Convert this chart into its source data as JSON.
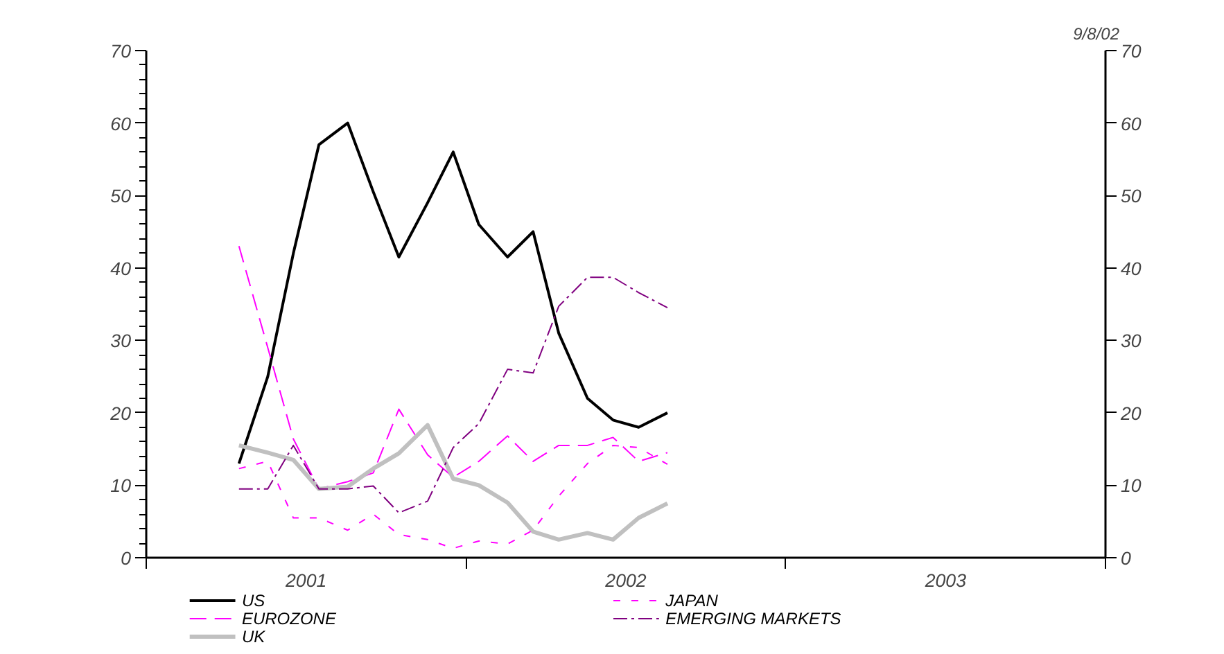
{
  "chart_data": {
    "type": "line",
    "x": [
      2001.29,
      2001.38,
      2001.46,
      2001.54,
      2001.63,
      2001.71,
      2001.79,
      2001.88,
      2001.96,
      2002.04,
      2002.13,
      2002.21,
      2002.29,
      2002.38,
      2002.46,
      2002.54,
      2002.63
    ],
    "series": [
      {
        "name": "US",
        "color": "#000000",
        "line_style": "solid",
        "values": [
          13,
          25,
          42,
          57,
          60,
          50.5,
          41.5,
          49,
          56,
          46,
          41.5,
          45,
          31,
          22,
          19,
          18,
          20
        ]
      },
      {
        "name": "EUROZONE",
        "color": "#ff00ff",
        "line_style": "dashed",
        "values": [
          43,
          29,
          16.4,
          9.5,
          10.5,
          11.7,
          20.5,
          14.2,
          11.1,
          13.3,
          16.8,
          13.3,
          15.5,
          15.5,
          16.6,
          13.3,
          14.5
        ]
      },
      {
        "name": "UK",
        "color": "#c0c0c0",
        "line_style": "solid",
        "values": [
          15.5,
          14.5,
          13.5,
          9.5,
          9.8,
          12.3,
          14.4,
          18.3,
          10.9,
          10,
          7.6,
          3.6,
          2.5,
          3.4,
          2.5,
          5.5,
          7.5
        ]
      },
      {
        "name": "JAPAN",
        "color": "#ff00ff",
        "line_style": "dotted",
        "values": [
          12.3,
          13.3,
          5.5,
          5.5,
          3.8,
          6,
          3.2,
          2.5,
          1.3,
          2.3,
          1.9,
          3.8,
          8.5,
          13,
          15.5,
          15.2,
          12.9
        ]
      },
      {
        "name": "EMERGING MARKETS",
        "color": "#800080",
        "line_style": "dashdot",
        "values": [
          9.5,
          9.5,
          15.5,
          9.5,
          9.5,
          9.9,
          6.2,
          7.8,
          15.2,
          18.5,
          26,
          25.5,
          34.7,
          38.7,
          38.7,
          36.6,
          34.5
        ]
      }
    ],
    "xlim": [
      2001,
      2004
    ],
    "xticks": [
      {
        "value": 2001,
        "label": null
      },
      {
        "value": 2001.5,
        "label": "2001"
      },
      {
        "value": 2002,
        "label": null
      },
      {
        "value": 2002.5,
        "label": "2002"
      },
      {
        "value": 2003,
        "label": null
      },
      {
        "value": 2003.5,
        "label": "2003"
      },
      {
        "value": 2004,
        "label": null
      }
    ],
    "ylim": [
      0,
      70
    ],
    "yticks": [
      0,
      {
        "value": 2,
        "label": null
      },
      {
        "value": 4,
        "label": null
      },
      {
        "value": 6,
        "label": null
      },
      {
        "value": 8,
        "label": null
      },
      10,
      {
        "value": 12,
        "label": null
      },
      {
        "value": 14,
        "label": null
      },
      {
        "value": 16,
        "label": null
      },
      {
        "value": 18,
        "label": null
      },
      20,
      {
        "value": 22,
        "label": null
      },
      {
        "value": 24,
        "label": null
      },
      {
        "value": 26,
        "label": null
      },
      {
        "value": 28,
        "label": null
      },
      30,
      {
        "value": 32,
        "label": null
      },
      {
        "value": 34,
        "label": null
      },
      {
        "value": 36,
        "label": null
      },
      {
        "value": 38,
        "label": null
      },
      40,
      {
        "value": 42,
        "label": null
      },
      {
        "value": 44,
        "label": null
      },
      {
        "value": 46,
        "label": null
      },
      {
        "value": 48,
        "label": null
      },
      50,
      {
        "value": 52,
        "label": null
      },
      {
        "value": 54,
        "label": null
      },
      {
        "value": 56,
        "label": null
      },
      {
        "value": 58,
        "label": null
      },
      60,
      {
        "value": 62,
        "label": null
      },
      {
        "value": 64,
        "label": null
      },
      {
        "value": 66,
        "label": null
      },
      {
        "value": 68,
        "label": null
      },
      70
    ],
    "y2lim": [
      0,
      70
    ],
    "y2ticks": [
      0,
      10,
      20,
      30,
      40,
      50,
      60,
      70
    ],
    "annotations": [
      "9/8/02"
    ],
    "legend": "bottom",
    "grid": false,
    "marker": "none"
  }
}
